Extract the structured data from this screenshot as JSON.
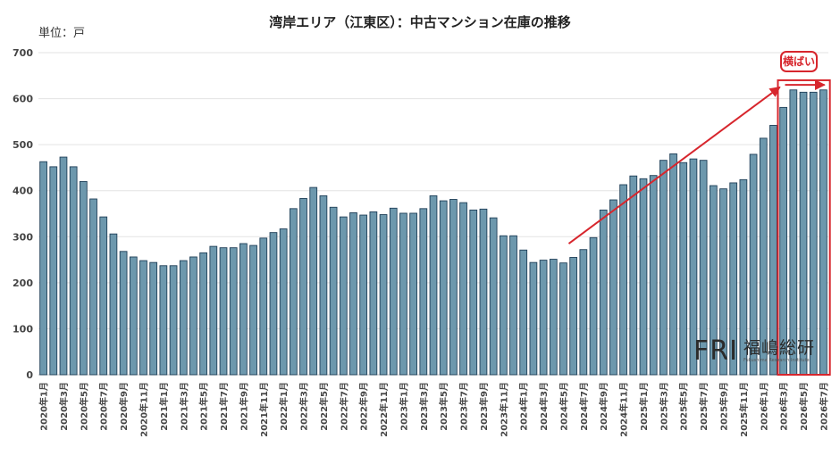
{
  "chart_data": {
    "type": "bar",
    "title": "湾岸エリア（江東区）：中古マンション在庫の推移",
    "unit_label": "単位：戸",
    "ylim": [
      0,
      700
    ],
    "yticks": [
      0,
      100,
      200,
      300,
      400,
      500,
      600,
      700
    ],
    "grid": true,
    "categories": [
      "2020年1月",
      "2020年2月",
      "2020年3月",
      "2020年4月",
      "2020年5月",
      "2020年6月",
      "2020年7月",
      "2020年8月",
      "2020年9月",
      "2020年10月",
      "2020年11月",
      "2020年12月",
      "2021年1月",
      "2021年2月",
      "2021年3月",
      "2021年4月",
      "2021年5月",
      "2021年6月",
      "2021年7月",
      "2021年8月",
      "2021年9月",
      "2021年10月",
      "2021年11月",
      "2021年12月",
      "2022年1月",
      "2022年2月",
      "2022年3月",
      "2022年4月",
      "2022年5月",
      "2022年6月",
      "2022年7月",
      "2022年8月",
      "2022年9月",
      "2022年10月",
      "2022年11月",
      "2022年12月",
      "2023年1月",
      "2023年2月",
      "2023年3月",
      "2023年4月",
      "2023年5月",
      "2023年6月",
      "2023年7月",
      "2023年8月",
      "2023年9月",
      "2023年10月",
      "2023年11月",
      "2023年12月",
      "2024年1月",
      "2024年2月",
      "2024年3月",
      "2024年4月",
      "2024年5月",
      "2024年6月",
      "2024年7月",
      "2024年8月",
      "2024年9月",
      "2024年10月",
      "2024年11月",
      "2024年12月",
      "2025年1月",
      "2025年2月",
      "2025年3月",
      "2025年4月",
      "2025年5月",
      "2025年6月",
      "2025年7月",
      "2025年8月",
      "2025年9月",
      "2025年10月",
      "2025年11月",
      "2025年12月",
      "2026年1月",
      "2026年2月",
      "2026年3月",
      "2026年4月",
      "2026年5月",
      "2026年6月",
      "2026年7月"
    ],
    "tick_labels_shown": [
      "2020年1月",
      "2020年3月",
      "2020年5月",
      "2020年7月",
      "2020年9月",
      "2020年11月",
      "2021年1月",
      "2021年3月",
      "2021年5月",
      "2021年7月",
      "2021年9月",
      "2021年11月",
      "2022年1月",
      "2022年3月",
      "2022年5月",
      "2022年7月",
      "2022年9月",
      "2022年11月",
      "2023年1月",
      "2023年3月",
      "2023年5月",
      "2023年7月",
      "2023年9月",
      "2023年11月",
      "2024年1月",
      "2024年3月",
      "2024年5月",
      "2024年7月",
      "2024年9月",
      "2024年11月",
      "2025年1月",
      "2025年3月",
      "2025年5月",
      "2025年7月",
      "2025年9月",
      "2025年11月",
      "2026年1月",
      "2026年3月",
      "2026年5月",
      "2026年7月"
    ],
    "values": [
      463,
      452,
      473,
      452,
      420,
      382,
      343,
      306,
      268,
      256,
      248,
      244,
      237,
      237,
      248,
      256,
      265,
      279,
      276,
      276,
      285,
      281,
      297,
      309,
      317,
      361,
      383,
      407,
      389,
      364,
      343,
      352,
      347,
      354,
      348,
      362,
      351,
      351,
      361,
      389,
      378,
      381,
      374,
      358,
      360,
      341,
      302,
      302,
      271,
      244,
      249,
      251,
      243,
      255,
      272,
      298,
      358,
      380,
      413,
      432,
      426,
      433,
      466,
      480,
      461,
      469,
      466,
      411,
      404,
      417,
      424,
      479,
      514,
      542,
      581,
      619,
      614,
      614,
      619
    ],
    "bar_color": "#6d98ad",
    "bar_edge_color": "#1f3f58",
    "annotations": {
      "trend_arrow_color": "#d7262d",
      "callout_label": "横ばい",
      "highlight_range": [
        "2026年3月",
        "2026年7月"
      ]
    }
  },
  "watermark": {
    "logo": "FRI",
    "name_jp": "福嶋総研",
    "name_en": "Fukushima Research Institute"
  }
}
